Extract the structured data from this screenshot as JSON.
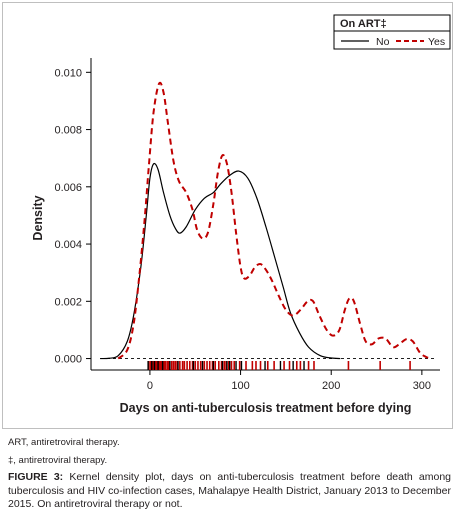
{
  "chart_data": {
    "type": "line",
    "title": "",
    "xlabel": "Days on anti-tuberculosis treatment before dying",
    "ylabel": "Density",
    "xlim": [
      -65,
      320
    ],
    "ylim": [
      -0.0004,
      0.0105
    ],
    "x_ticks": [
      0,
      100,
      200,
      300
    ],
    "x_tick_labels": [
      "0",
      "100",
      "200",
      "300"
    ],
    "y_ticks": [
      0,
      0.002,
      0.004,
      0.006,
      0.008,
      0.01
    ],
    "y_tick_labels": [
      "0.000",
      "0.002",
      "0.004",
      "0.006",
      "0.008",
      "0.010"
    ],
    "grid": false,
    "zero_line": true,
    "legend": {
      "title": "On ART‡",
      "position": "top-right"
    },
    "series": [
      {
        "name": "No",
        "color": "#000000",
        "style": "solid",
        "points": [
          [
            -55,
            0
          ],
          [
            -45,
            1e-05
          ],
          [
            -35,
            0.0001
          ],
          [
            -25,
            0.0006
          ],
          [
            -18,
            0.0015
          ],
          [
            -10,
            0.0032
          ],
          [
            -4,
            0.005
          ],
          [
            0,
            0.0063
          ],
          [
            4,
            0.0068
          ],
          [
            9,
            0.0066
          ],
          [
            15,
            0.0058
          ],
          [
            22,
            0.005
          ],
          [
            28,
            0.00455
          ],
          [
            33,
            0.00438
          ],
          [
            40,
            0.0046
          ],
          [
            50,
            0.0052
          ],
          [
            60,
            0.0056
          ],
          [
            70,
            0.0058
          ],
          [
            78,
            0.0061
          ],
          [
            88,
            0.0064
          ],
          [
            98,
            0.00655
          ],
          [
            108,
            0.0063
          ],
          [
            118,
            0.0056
          ],
          [
            128,
            0.0046
          ],
          [
            138,
            0.0035
          ],
          [
            147,
            0.0025
          ],
          [
            155,
            0.0016
          ],
          [
            165,
            0.0009
          ],
          [
            175,
            0.0004
          ],
          [
            188,
            0.0001
          ],
          [
            200,
            2e-05
          ],
          [
            210,
            0
          ]
        ]
      },
      {
        "name": "Yes",
        "color": "#c00000",
        "style": "dashed",
        "points": [
          [
            -35,
            0
          ],
          [
            -25,
            0.0003
          ],
          [
            -18,
            0.0012
          ],
          [
            -12,
            0.0028
          ],
          [
            -6,
            0.0048
          ],
          [
            -1,
            0.0068
          ],
          [
            4,
            0.0086
          ],
          [
            10,
            0.0096
          ],
          [
            15,
            0.0093
          ],
          [
            20,
            0.0082
          ],
          [
            26,
            0.0069
          ],
          [
            32,
            0.0062
          ],
          [
            40,
            0.0058
          ],
          [
            47,
            0.0052
          ],
          [
            52,
            0.0045
          ],
          [
            58,
            0.0042
          ],
          [
            64,
            0.0044
          ],
          [
            70,
            0.0054
          ],
          [
            75,
            0.0065
          ],
          [
            80,
            0.0071
          ],
          [
            85,
            0.0068
          ],
          [
            90,
            0.0058
          ],
          [
            95,
            0.0044
          ],
          [
            100,
            0.0032
          ],
          [
            104,
            0.0028
          ],
          [
            110,
            0.0029
          ],
          [
            116,
            0.0032
          ],
          [
            122,
            0.0033
          ],
          [
            128,
            0.0031
          ],
          [
            135,
            0.0027
          ],
          [
            142,
            0.0022
          ],
          [
            150,
            0.0017
          ],
          [
            158,
            0.0015
          ],
          [
            166,
            0.0017
          ],
          [
            174,
            0.002
          ],
          [
            180,
            0.002
          ],
          [
            187,
            0.0015
          ],
          [
            195,
            0.001
          ],
          [
            202,
            0.0008
          ],
          [
            209,
            0.001
          ],
          [
            215,
            0.0017
          ],
          [
            220,
            0.0021
          ],
          [
            225,
            0.002
          ],
          [
            232,
            0.0012
          ],
          [
            238,
            0.0006
          ],
          [
            245,
            0.0005
          ],
          [
            252,
            0.0007
          ],
          [
            260,
            0.0007
          ],
          [
            268,
            0.0004
          ],
          [
            275,
            0.0005
          ],
          [
            283,
            0.00068
          ],
          [
            290,
            0.0006
          ],
          [
            298,
            0.0002
          ],
          [
            305,
            5e-05
          ],
          [
            310,
            0
          ]
        ]
      }
    ],
    "rug": {
      "no_art": [
        -2,
        2,
        5,
        9,
        14,
        22,
        31,
        48,
        58,
        70,
        80,
        85,
        88,
        95,
        101,
        127,
        144,
        158,
        170
      ],
      "art": [
        -1,
        1,
        3,
        4,
        6,
        7,
        8,
        10,
        11,
        12,
        13,
        15,
        16,
        17,
        19,
        20,
        21,
        24,
        26,
        28,
        30,
        33,
        36,
        38,
        41,
        44,
        47,
        50,
        53,
        56,
        60,
        63,
        66,
        69,
        72,
        76,
        79,
        82,
        84,
        87,
        90,
        93,
        99,
        106,
        113,
        117,
        122,
        130,
        137,
        148,
        154,
        162,
        166,
        175,
        181,
        219,
        254,
        287
      ]
    }
  },
  "footnotes": {
    "art": "ART, antiretroviral therapy.",
    "double_dagger": "‡, antiretroviral therapy."
  },
  "caption": {
    "label": "FIGURE 3:",
    "text": " Kernel density plot, days on anti-tuberculosis treatment before death among tuberculosis and HIV co-infection cases, Mahalapye Health District, January 2013 to December 2015. On antiretroviral therapy or not."
  }
}
